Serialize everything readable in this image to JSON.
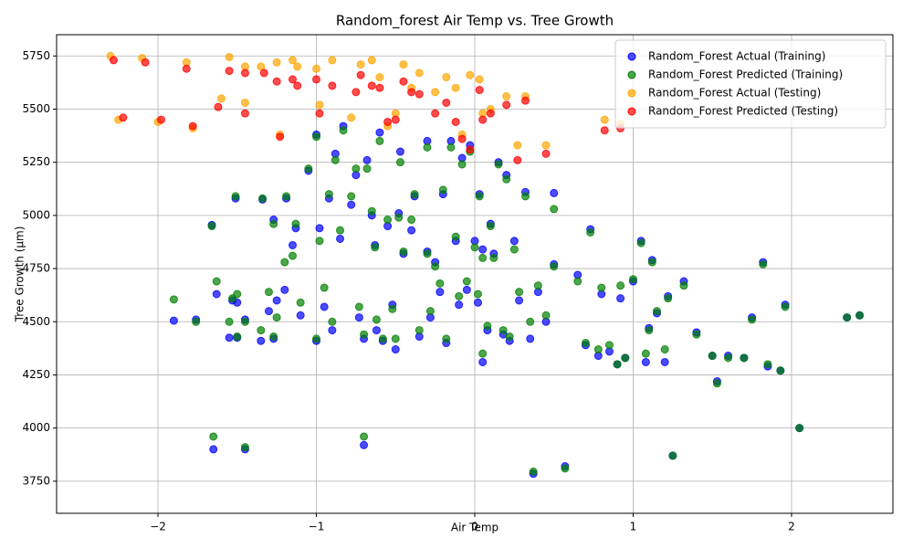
{
  "chart_data": {
    "type": "scatter",
    "title": "Random_forest Air Temp vs. Tree Growth",
    "x_label": "Air Temp",
    "y_label": "Tree Growth (μm)",
    "xlim": [
      -2.64,
      2.64
    ],
    "ylim": [
      3599,
      5850
    ],
    "xticks": [
      {
        "value": -2,
        "label": "−2"
      },
      {
        "value": -1,
        "label": "−1"
      },
      0,
      1,
      2
    ],
    "yticks": [
      3750,
      4000,
      4250,
      4500,
      4750,
      5000,
      5250,
      5500,
      5750
    ],
    "grid": true,
    "legend_position": "upper-right",
    "series": [
      {
        "name": "Random_Forest Actual (Training)",
        "color": "#0000ff",
        "x": [
          -1.9,
          -1.76,
          -1.66,
          -1.65,
          -1.63,
          -1.55,
          -1.53,
          -1.51,
          -1.5,
          -1.5,
          -1.45,
          -1.45,
          -1.35,
          -1.34,
          -1.3,
          -1.27,
          -1.27,
          -1.25,
          -1.2,
          -1.19,
          -1.15,
          -1.13,
          -1.1,
          -1.05,
          -1.0,
          -1.0,
          -0.98,
          -0.95,
          -0.92,
          -0.9,
          -0.88,
          -0.85,
          -0.83,
          -0.78,
          -0.75,
          -0.73,
          -0.7,
          -0.7,
          -0.68,
          -0.65,
          -0.63,
          -0.62,
          -0.6,
          -0.58,
          -0.55,
          -0.52,
          -0.5,
          -0.48,
          -0.47,
          -0.45,
          -0.4,
          -0.38,
          -0.35,
          -0.3,
          -0.3,
          -0.28,
          -0.25,
          -0.22,
          -0.2,
          -0.18,
          -0.15,
          -0.12,
          -0.1,
          -0.08,
          -0.05,
          -0.03,
          0,
          0.02,
          0.03,
          0.05,
          0.05,
          0.08,
          0.1,
          0.12,
          0.15,
          0.18,
          0.2,
          0.22,
          0.25,
          0.28,
          0.32,
          0.35,
          0.37,
          0.4,
          0.45,
          0.5,
          0.5,
          0.57,
          0.65,
          0.7,
          0.73,
          0.78,
          0.8,
          0.85,
          0.9,
          0.92,
          0.95,
          1.0,
          1.05,
          1.08,
          1.1,
          1.12,
          1.15,
          1.2,
          1.22,
          1.25,
          1.32,
          1.4,
          1.5,
          1.53,
          1.6,
          1.7,
          1.75,
          1.82,
          1.85,
          1.93,
          1.96,
          2.05,
          2.35,
          2.43
        ],
        "values": [
          4505,
          4510,
          4955,
          3900,
          4630,
          4425,
          4600,
          5080,
          4590,
          4425,
          3900,
          4510,
          4410,
          5075,
          4550,
          4980,
          4420,
          4600,
          4650,
          5080,
          4860,
          4940,
          4530,
          5210,
          5380,
          4410,
          4940,
          4570,
          5080,
          4460,
          5290,
          4890,
          5420,
          5050,
          5190,
          4520,
          3920,
          4420,
          5260,
          5000,
          4860,
          4460,
          5390,
          4410,
          4950,
          4580,
          4370,
          5010,
          5300,
          4820,
          4930,
          5090,
          4430,
          4830,
          5350,
          4520,
          4780,
          4640,
          5100,
          4400,
          5350,
          4880,
          4580,
          5270,
          4650,
          5330,
          4880,
          4590,
          5100,
          4310,
          4840,
          4460,
          4960,
          4820,
          5250,
          4440,
          5190,
          4410,
          4880,
          4600,
          5110,
          4420,
          3785,
          4640,
          4500,
          5105,
          4770,
          3820,
          4720,
          4390,
          4935,
          4340,
          4630,
          4360,
          4300,
          4610,
          4330,
          4690,
          4880,
          4310,
          4470,
          4790,
          4540,
          4310,
          4620,
          3870,
          4690,
          4450,
          4340,
          4220,
          4340,
          4330,
          4520,
          4780,
          4290,
          4270,
          4580,
          4000,
          4520,
          4530
        ]
      },
      {
        "name": "Random_Forest Predicted (Training)",
        "color": "#008000",
        "x": [
          -1.9,
          -1.76,
          -1.66,
          -1.65,
          -1.63,
          -1.55,
          -1.53,
          -1.51,
          -1.5,
          -1.5,
          -1.45,
          -1.45,
          -1.35,
          -1.34,
          -1.3,
          -1.27,
          -1.27,
          -1.25,
          -1.2,
          -1.19,
          -1.15,
          -1.13,
          -1.1,
          -1.05,
          -1.0,
          -1.0,
          -0.98,
          -0.95,
          -0.92,
          -0.9,
          -0.88,
          -0.85,
          -0.83,
          -0.78,
          -0.75,
          -0.73,
          -0.7,
          -0.7,
          -0.68,
          -0.65,
          -0.63,
          -0.62,
          -0.6,
          -0.58,
          -0.55,
          -0.52,
          -0.5,
          -0.48,
          -0.47,
          -0.45,
          -0.4,
          -0.38,
          -0.35,
          -0.3,
          -0.3,
          -0.28,
          -0.25,
          -0.22,
          -0.2,
          -0.18,
          -0.15,
          -0.12,
          -0.1,
          -0.08,
          -0.05,
          -0.03,
          0,
          0.02,
          0.03,
          0.05,
          0.05,
          0.08,
          0.1,
          0.12,
          0.15,
          0.18,
          0.2,
          0.22,
          0.25,
          0.28,
          0.32,
          0.35,
          0.37,
          0.4,
          0.45,
          0.5,
          0.5,
          0.57,
          0.65,
          0.7,
          0.73,
          0.78,
          0.8,
          0.85,
          0.9,
          0.92,
          0.95,
          1.0,
          1.05,
          1.08,
          1.1,
          1.12,
          1.15,
          1.2,
          1.22,
          1.25,
          1.32,
          1.4,
          1.5,
          1.53,
          1.6,
          1.7,
          1.75,
          1.82,
          1.85,
          1.93,
          1.96,
          2.05,
          2.35,
          2.43
        ],
        "values": [
          4605,
          4500,
          4950,
          3960,
          4690,
          4500,
          4610,
          5090,
          4630,
          4430,
          3910,
          4500,
          4460,
          5080,
          4640,
          4960,
          4430,
          4520,
          4780,
          5090,
          4810,
          4960,
          4590,
          5220,
          5370,
          4420,
          4880,
          4660,
          5100,
          4500,
          5260,
          4930,
          5400,
          5090,
          5220,
          4570,
          3960,
          4440,
          5220,
          5020,
          4850,
          4510,
          5350,
          4420,
          4980,
          4560,
          4420,
          4990,
          5250,
          4830,
          4980,
          5100,
          4460,
          4820,
          5320,
          4550,
          4760,
          4680,
          5120,
          4420,
          5320,
          4900,
          4620,
          5240,
          4690,
          5300,
          4850,
          4630,
          5090,
          4350,
          4800,
          4480,
          4950,
          4800,
          5240,
          4460,
          5170,
          4430,
          4840,
          4640,
          5090,
          4500,
          3795,
          4670,
          4530,
          5030,
          4760,
          3810,
          4690,
          4400,
          4920,
          4370,
          4660,
          4390,
          4300,
          4670,
          4330,
          4700,
          4870,
          4350,
          4460,
          4780,
          4550,
          4370,
          4610,
          3870,
          4670,
          4440,
          4340,
          4210,
          4330,
          4330,
          4510,
          4770,
          4300,
          4270,
          4570,
          4000,
          4520,
          4530
        ]
      },
      {
        "name": "Random_Forest Actual (Testing)",
        "color": "#ffa500",
        "x": [
          -2.3,
          -2.25,
          -2.1,
          -2.0,
          -1.82,
          -1.78,
          -1.6,
          -1.55,
          -1.45,
          -1.45,
          -1.35,
          -1.25,
          -1.23,
          -1.15,
          -1.12,
          -1.0,
          -0.98,
          -0.9,
          -0.78,
          -0.72,
          -0.65,
          -0.6,
          -0.55,
          -0.5,
          -0.45,
          -0.4,
          -0.35,
          -0.25,
          -0.18,
          -0.12,
          -0.08,
          -0.03,
          0.03,
          0.05,
          0.1,
          0.2,
          0.27,
          0.32,
          0.45,
          0.82,
          0.92
        ],
        "values": [
          5750,
          5450,
          5740,
          5440,
          5720,
          5410,
          5550,
          5745,
          5700,
          5530,
          5700,
          5720,
          5380,
          5730,
          5700,
          5690,
          5520,
          5730,
          5460,
          5710,
          5730,
          5650,
          5420,
          5480,
          5710,
          5600,
          5670,
          5580,
          5650,
          5600,
          5380,
          5660,
          5640,
          5480,
          5500,
          5560,
          5330,
          5560,
          5330,
          5450,
          5430
        ]
      },
      {
        "name": "Random_Forest Predicted (Testing)",
        "color": "#ff0000",
        "x": [
          -2.28,
          -2.22,
          -2.08,
          -1.98,
          -1.82,
          -1.78,
          -1.62,
          -1.55,
          -1.45,
          -1.45,
          -1.33,
          -1.25,
          -1.23,
          -1.15,
          -1.12,
          -1.0,
          -0.98,
          -0.9,
          -0.75,
          -0.72,
          -0.65,
          -0.6,
          -0.55,
          -0.5,
          -0.45,
          -0.4,
          -0.35,
          -0.25,
          -0.18,
          -0.12,
          -0.08,
          -0.03,
          0.03,
          0.05,
          0.1,
          0.2,
          0.27,
          0.32,
          0.45,
          0.82,
          0.92
        ],
        "values": [
          5730,
          5460,
          5720,
          5450,
          5690,
          5420,
          5510,
          5680,
          5670,
          5480,
          5670,
          5630,
          5370,
          5640,
          5610,
          5640,
          5480,
          5610,
          5580,
          5660,
          5610,
          5600,
          5440,
          5450,
          5630,
          5580,
          5570,
          5480,
          5530,
          5440,
          5360,
          5310,
          5590,
          5450,
          5480,
          5520,
          5260,
          5540,
          5290,
          5400,
          5410
        ]
      }
    ]
  }
}
